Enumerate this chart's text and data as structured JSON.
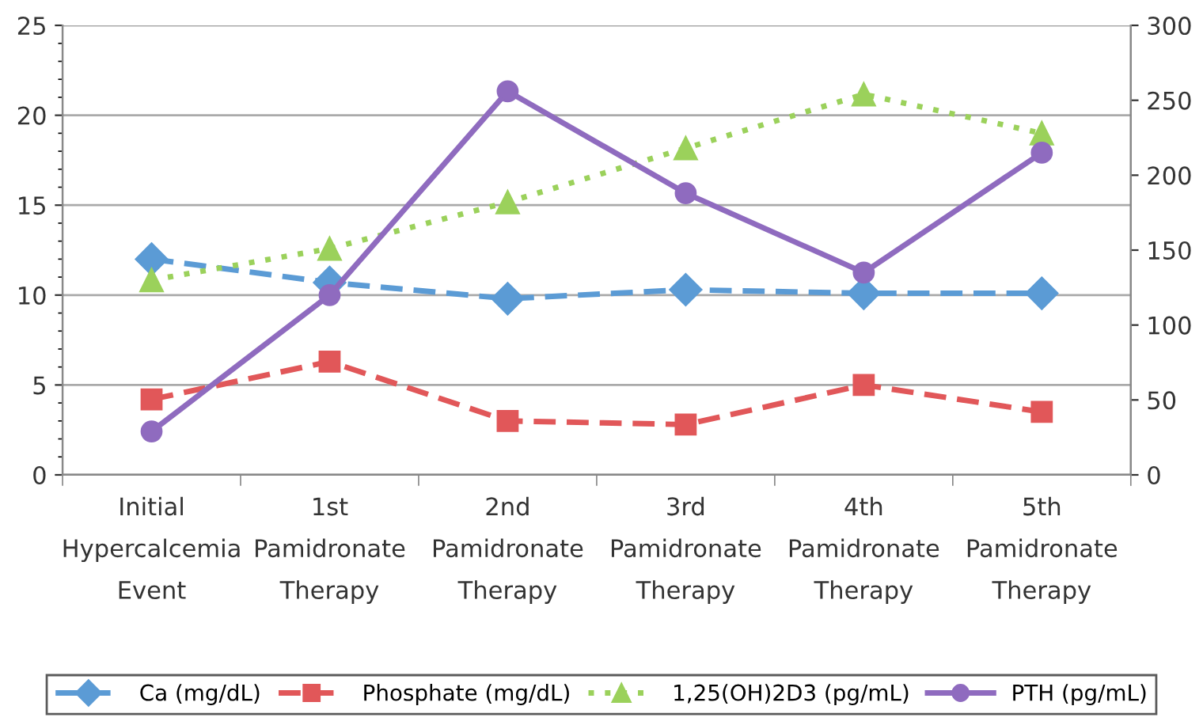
{
  "chart_data": {
    "type": "line",
    "categories": [
      "Initial\nHypercalcemia\nEvent",
      "1st\nPamidronate\nTherapy",
      "2nd\nPamidronate\nTherapy",
      "3rd\nPamidronate\nTherapy",
      "4th\nPamidronate\nTherapy",
      "5th\nPamidronate\nTherapy"
    ],
    "series": [
      {
        "name": "Ca (mg/dL)",
        "color": "#5b9bd5",
        "values": [
          12.0,
          10.7,
          9.8,
          10.3,
          10.1,
          10.1
        ],
        "marker": "diamond",
        "line_style": "dashed"
      },
      {
        "name": "Phosphate (mg/dL)",
        "color": "#e15759",
        "values": [
          4.2,
          6.3,
          3.0,
          2.8,
          5.0,
          3.5
        ],
        "marker": "square",
        "line_style": "dashed"
      },
      {
        "name": "1,25(OH)2D3 (pg/mL)",
        "color": "#9bd15b",
        "values": [
          130,
          151,
          182,
          218,
          254,
          228
        ],
        "marker": "triangle",
        "line_style": "dotted",
        "axis": "y2"
      },
      {
        "name": "PTH (pg/mL)",
        "color": "#8f6bbf",
        "values": [
          29,
          120,
          256,
          188,
          135,
          215
        ],
        "marker": "circle",
        "line_style": "solid",
        "axis": "y2"
      }
    ],
    "ylim": [
      0,
      25
    ],
    "yticks": [
      0,
      5,
      10,
      15,
      20,
      25
    ],
    "y2lim": [
      0,
      300
    ],
    "y2ticks": [
      0,
      50,
      100,
      150,
      200,
      250,
      300
    ],
    "grid": "y",
    "legend": "bottom"
  }
}
